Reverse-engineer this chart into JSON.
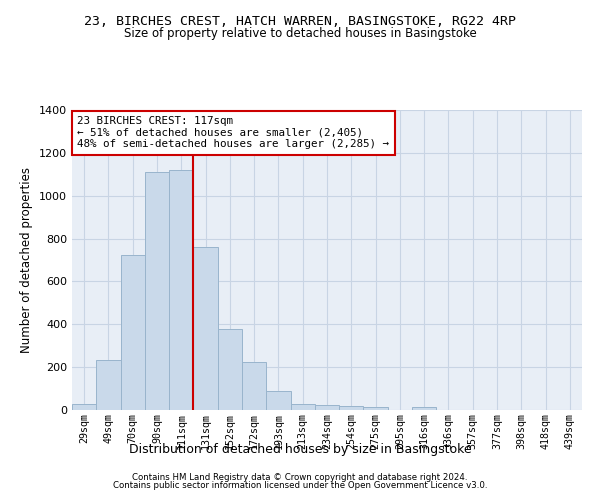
{
  "title1": "23, BIRCHES CREST, HATCH WARREN, BASINGSTOKE, RG22 4RP",
  "title2": "Size of property relative to detached houses in Basingstoke",
  "xlabel": "Distribution of detached houses by size in Basingstoke",
  "ylabel": "Number of detached properties",
  "bar_labels": [
    "29sqm",
    "49sqm",
    "70sqm",
    "90sqm",
    "111sqm",
    "131sqm",
    "152sqm",
    "172sqm",
    "193sqm",
    "213sqm",
    "234sqm",
    "254sqm",
    "275sqm",
    "295sqm",
    "316sqm",
    "336sqm",
    "357sqm",
    "377sqm",
    "398sqm",
    "418sqm",
    "439sqm"
  ],
  "bar_values": [
    30,
    235,
    725,
    1110,
    1120,
    760,
    380,
    225,
    90,
    30,
    25,
    20,
    15,
    0,
    12,
    0,
    0,
    0,
    0,
    0,
    0
  ],
  "bar_color": "#c9d9ea",
  "bar_edge_color": "#99b4cc",
  "vline_x": 4.5,
  "vline_color": "#cc0000",
  "annotation_text": "23 BIRCHES CREST: 117sqm\n← 51% of detached houses are smaller (2,405)\n48% of semi-detached houses are larger (2,285) →",
  "annotation_box_color": "#ffffff",
  "annotation_box_edge": "#cc0000",
  "ylim": [
    0,
    1400
  ],
  "yticks": [
    0,
    200,
    400,
    600,
    800,
    1000,
    1200,
    1400
  ],
  "grid_color": "#c8d4e4",
  "background_color": "#e8eef6",
  "footnote1": "Contains HM Land Registry data © Crown copyright and database right 2024.",
  "footnote2": "Contains public sector information licensed under the Open Government Licence v3.0."
}
